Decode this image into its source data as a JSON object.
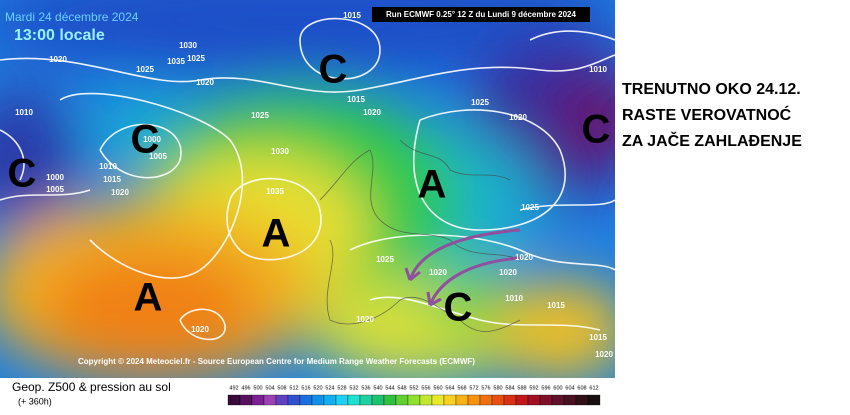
{
  "header": {
    "date": "Mardi 24 décembre 2024",
    "time": "13:00 locale",
    "run": "Run ECMWF 0.25° 12 Z du Lundi 9 décembre 2024"
  },
  "annotation": {
    "lines": [
      "TRENUTNO OKO 24.12.",
      "RASTE VEROVATNOĆ",
      "ZA JAČE ZAHLAĐENJE"
    ]
  },
  "centers": [
    "C",
    "C",
    "C",
    "C",
    "A",
    "A",
    "A",
    "C"
  ],
  "isobars": [
    "1015",
    "1020",
    "1025",
    "1030",
    "1035",
    "1025",
    "1020",
    "1015",
    "1020",
    "1025",
    "1000",
    "1005",
    "1010",
    "1015",
    "1020",
    "1000",
    "1005",
    "1030",
    "1035",
    "1025",
    "1020",
    "1010",
    "1025",
    "1020",
    "1020",
    "1020",
    "1010",
    "1015",
    "1020",
    "1020",
    "1025",
    "1015",
    "1020",
    "1010"
  ],
  "footer": {
    "copyright": "Copyright © 2024 Meteociel.fr - Source European Centre for Medium Range Weather Forecasts (ECMWF)"
  },
  "legend": {
    "title": "Geop. Z500 & pression au sol",
    "range": "(+ 360h)",
    "scale": [
      492,
      496,
      500,
      504,
      508,
      512,
      516,
      520,
      524,
      528,
      532,
      536,
      540,
      544,
      548,
      552,
      556,
      560,
      564,
      568,
      572,
      576,
      580,
      584,
      588,
      592,
      596,
      600,
      604,
      608,
      612
    ]
  }
}
